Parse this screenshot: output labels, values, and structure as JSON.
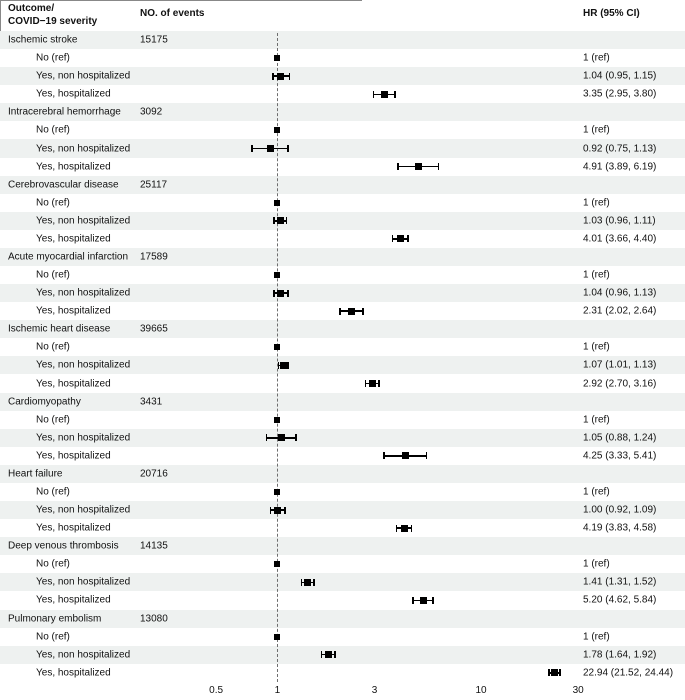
{
  "header": {
    "col1_line1": "Outcome/",
    "col1_line2": "COVID−19 severity",
    "col2": "NO. of events",
    "col3": "HR (95% CI)"
  },
  "severity_labels": [
    "No (ref)",
    "Yes, non hospitalized",
    "Yes, hospitalized"
  ],
  "chart_data": {
    "type": "forest-plot",
    "x_scale": "log",
    "xlim": [
      0.5,
      30
    ],
    "x_ticks": [
      "0.5",
      "1",
      "3",
      "10",
      "30"
    ],
    "x_tick_values": [
      0.5,
      1,
      3,
      10,
      30
    ],
    "reference_line": 1,
    "legend_position": "none",
    "grid": false,
    "groups": [
      {
        "outcome": "Ischemic stroke",
        "events": "15175",
        "rows": [
          {
            "label": "No (ref)",
            "hr_text": "1 (ref)",
            "ref": true,
            "hr": 1
          },
          {
            "label": "Yes, non hospitalized",
            "hr_text": "1.04 (0.95, 1.15)",
            "ref": false,
            "hr": 1.04,
            "lo": 0.95,
            "hi": 1.15
          },
          {
            "label": "Yes, hospitalized",
            "hr_text": "3.35 (2.95, 3.80)",
            "ref": false,
            "hr": 3.35,
            "lo": 2.95,
            "hi": 3.8
          }
        ]
      },
      {
        "outcome": "Intracerebral hemorrhage",
        "events": "3092",
        "rows": [
          {
            "label": "No (ref)",
            "hr_text": "1 (ref)",
            "ref": true,
            "hr": 1
          },
          {
            "label": "Yes, non hospitalized",
            "hr_text": "0.92 (0.75, 1.13)",
            "ref": false,
            "hr": 0.92,
            "lo": 0.75,
            "hi": 1.13
          },
          {
            "label": "Yes, hospitalized",
            "hr_text": "4.91 (3.89, 6.19)",
            "ref": false,
            "hr": 4.91,
            "lo": 3.89,
            "hi": 6.19
          }
        ]
      },
      {
        "outcome": "Cerebrovascular disease",
        "events": "25117",
        "rows": [
          {
            "label": "No (ref)",
            "hr_text": "1 (ref)",
            "ref": true,
            "hr": 1
          },
          {
            "label": "Yes, non hospitalized",
            "hr_text": "1.03 (0.96, 1.11)",
            "ref": false,
            "hr": 1.03,
            "lo": 0.96,
            "hi": 1.11
          },
          {
            "label": "Yes, hospitalized",
            "hr_text": "4.01 (3.66, 4.40)",
            "ref": false,
            "hr": 4.01,
            "lo": 3.66,
            "hi": 4.4
          }
        ]
      },
      {
        "outcome": "Acute myocardial infarction",
        "events": "17589",
        "rows": [
          {
            "label": "No (ref)",
            "hr_text": "1 (ref)",
            "ref": true,
            "hr": 1
          },
          {
            "label": "Yes, non hospitalized",
            "hr_text": "1.04 (0.96, 1.13)",
            "ref": false,
            "hr": 1.04,
            "lo": 0.96,
            "hi": 1.13
          },
          {
            "label": "Yes, hospitalized",
            "hr_text": "2.31 (2.02, 2.64)",
            "ref": false,
            "hr": 2.31,
            "lo": 2.02,
            "hi": 2.64
          }
        ]
      },
      {
        "outcome": "Ischemic heart disease",
        "events": "39665",
        "rows": [
          {
            "label": "No (ref)",
            "hr_text": "1 (ref)",
            "ref": true,
            "hr": 1
          },
          {
            "label": "Yes, non hospitalized",
            "hr_text": "1.07 (1.01, 1.13)",
            "ref": false,
            "hr": 1.07,
            "lo": 1.01,
            "hi": 1.13
          },
          {
            "label": "Yes, hospitalized",
            "hr_text": "2.92 (2.70, 3.16)",
            "ref": false,
            "hr": 2.92,
            "lo": 2.7,
            "hi": 3.16
          }
        ]
      },
      {
        "outcome": "Cardiomyopathy",
        "events": "3431",
        "rows": [
          {
            "label": "No (ref)",
            "hr_text": "1 (ref)",
            "ref": true,
            "hr": 1
          },
          {
            "label": "Yes, non hospitalized",
            "hr_text": "1.05 (0.88, 1.24)",
            "ref": false,
            "hr": 1.05,
            "lo": 0.88,
            "hi": 1.24
          },
          {
            "label": "Yes, hospitalized",
            "hr_text": "4.25 (3.33, 5.41)",
            "ref": false,
            "hr": 4.25,
            "lo": 3.33,
            "hi": 5.41
          }
        ]
      },
      {
        "outcome": "Heart failure",
        "events": "20716",
        "rows": [
          {
            "label": "No (ref)",
            "hr_text": "1 (ref)",
            "ref": true,
            "hr": 1
          },
          {
            "label": "Yes, non hospitalized",
            "hr_text": "1.00 (0.92, 1.09)",
            "ref": false,
            "hr": 1.0,
            "lo": 0.92,
            "hi": 1.09
          },
          {
            "label": "Yes, hospitalized",
            "hr_text": "4.19 (3.83, 4.58)",
            "ref": false,
            "hr": 4.19,
            "lo": 3.83,
            "hi": 4.58
          }
        ]
      },
      {
        "outcome": "Deep venous thrombosis",
        "events": "14135",
        "rows": [
          {
            "label": "No (ref)",
            "hr_text": "1 (ref)",
            "ref": true,
            "hr": 1
          },
          {
            "label": "Yes, non hospitalized",
            "hr_text": "1.41 (1.31, 1.52)",
            "ref": false,
            "hr": 1.41,
            "lo": 1.31,
            "hi": 1.52
          },
          {
            "label": "Yes, hospitalized",
            "hr_text": "5.20 (4.62, 5.84)",
            "ref": false,
            "hr": 5.2,
            "lo": 4.62,
            "hi": 5.84
          }
        ]
      },
      {
        "outcome": "Pulmonary embolism",
        "events": "13080",
        "rows": [
          {
            "label": "No (ref)",
            "hr_text": "1 (ref)",
            "ref": true,
            "hr": 1
          },
          {
            "label": "Yes, non hospitalized",
            "hr_text": "1.78 (1.64, 1.92)",
            "ref": false,
            "hr": 1.78,
            "lo": 1.64,
            "hi": 1.92
          },
          {
            "label": "Yes, hospitalized",
            "hr_text": "22.94 (21.52, 24.44)",
            "ref": false,
            "hr": 22.94,
            "lo": 21.52,
            "hi": 24.44
          }
        ]
      }
    ]
  },
  "colors": {
    "stripe": "#eef1f0",
    "row_white": "#ffffff",
    "marker": "#000000",
    "reference_line": "#6e6e6e",
    "axis_line": "#888888",
    "text": "#111111"
  }
}
